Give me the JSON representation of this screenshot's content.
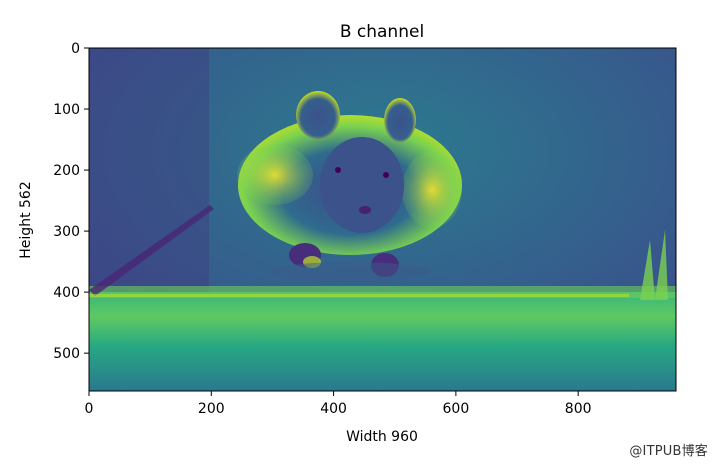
{
  "chart_data": {
    "type": "heatmap",
    "title": "B channel",
    "xlabel": "Width 960",
    "ylabel": "Height 562",
    "xlim": [
      0,
      960
    ],
    "ylim": [
      562,
      0
    ],
    "xticks": [
      "0",
      "200",
      "400",
      "600",
      "800"
    ],
    "yticks": [
      "0",
      "100",
      "200",
      "300",
      "400",
      "500"
    ],
    "colormap": "viridis",
    "image_subject": "hamster running toward camera",
    "colors": {
      "low": "#440154",
      "mid_low": "#31688e",
      "mid": "#21918c",
      "mid_high": "#5ec962",
      "high": "#fde725"
    }
  },
  "watermark": "@ITPUB博客"
}
